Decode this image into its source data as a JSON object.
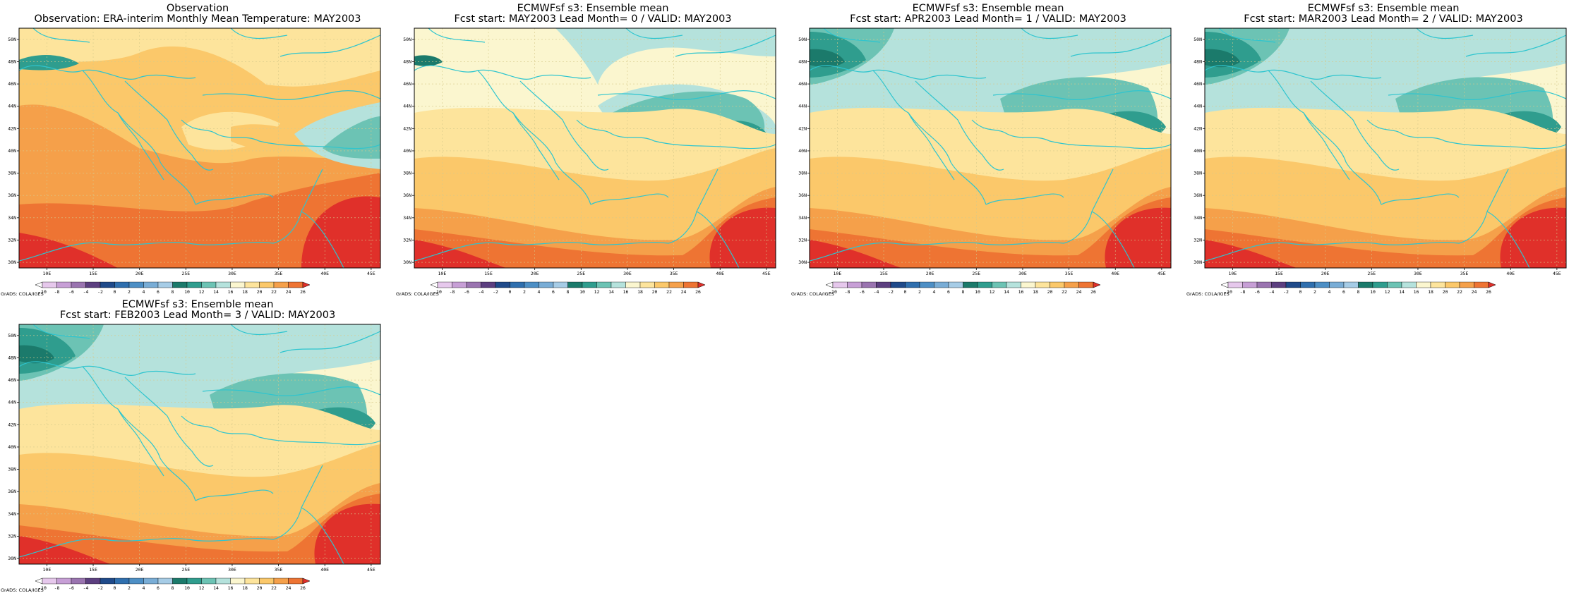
{
  "panels": [
    {
      "title1": "Observation",
      "title2": "Observation: ERA-interim Monthly Mean Temperature: MAY2003",
      "cool": 0
    },
    {
      "title1": "ECMWFsf s3: Ensemble mean",
      "title2": "Fcst start: MAY2003  Lead Month= 0 / VALID: MAY2003",
      "cool": 1
    },
    {
      "title1": "ECMWFsf s3: Ensemble mean",
      "title2": "Fcst start: APR2003  Lead Month= 1 / VALID: MAY2003",
      "cool": 2
    },
    {
      "title1": "ECMWFsf s3: Ensemble mean",
      "title2": "Fcst start: MAR2003  Lead Month= 2 / VALID: MAY2003",
      "cool": 2
    },
    {
      "title1": "ECMWFsf s3: Ensemble mean",
      "title2": "Fcst start: FEB2003  Lead Month= 3 / VALID: MAY2003",
      "cool": 2
    }
  ],
  "map": {
    "lat_labels": [
      "50N",
      "48N",
      "46N",
      "44N",
      "42N",
      "40N",
      "38N",
      "36N",
      "34N",
      "32N",
      "30N"
    ],
    "lon_labels": [
      "10E",
      "15E",
      "20E",
      "25E",
      "30E",
      "35E",
      "40E",
      "45E"
    ],
    "coast_color": "#2ec5cf",
    "grid_color": "#d6c98a"
  },
  "colorbar": {
    "labels": [
      "-10",
      "-8",
      "-6",
      "-4",
      "-2",
      "0",
      "2",
      "4",
      "6",
      "8",
      "10",
      "12",
      "14",
      "16",
      "18",
      "20",
      "22",
      "24",
      "26"
    ],
    "colors": [
      "#ffffff",
      "#e6c8ec",
      "#c79fd6",
      "#9a74b0",
      "#5c3f80",
      "#1f4a8a",
      "#2f6fae",
      "#4d8fc5",
      "#79add6",
      "#a6cce6",
      "#1b7a6b",
      "#2f9d8e",
      "#6cc3b4",
      "#b5e2dc",
      "#fbf6cf",
      "#fde49c",
      "#fbc86a",
      "#f5a04a",
      "#ee7433",
      "#e0302a"
    ],
    "credit": "GrADS: COLA/IGES"
  }
}
